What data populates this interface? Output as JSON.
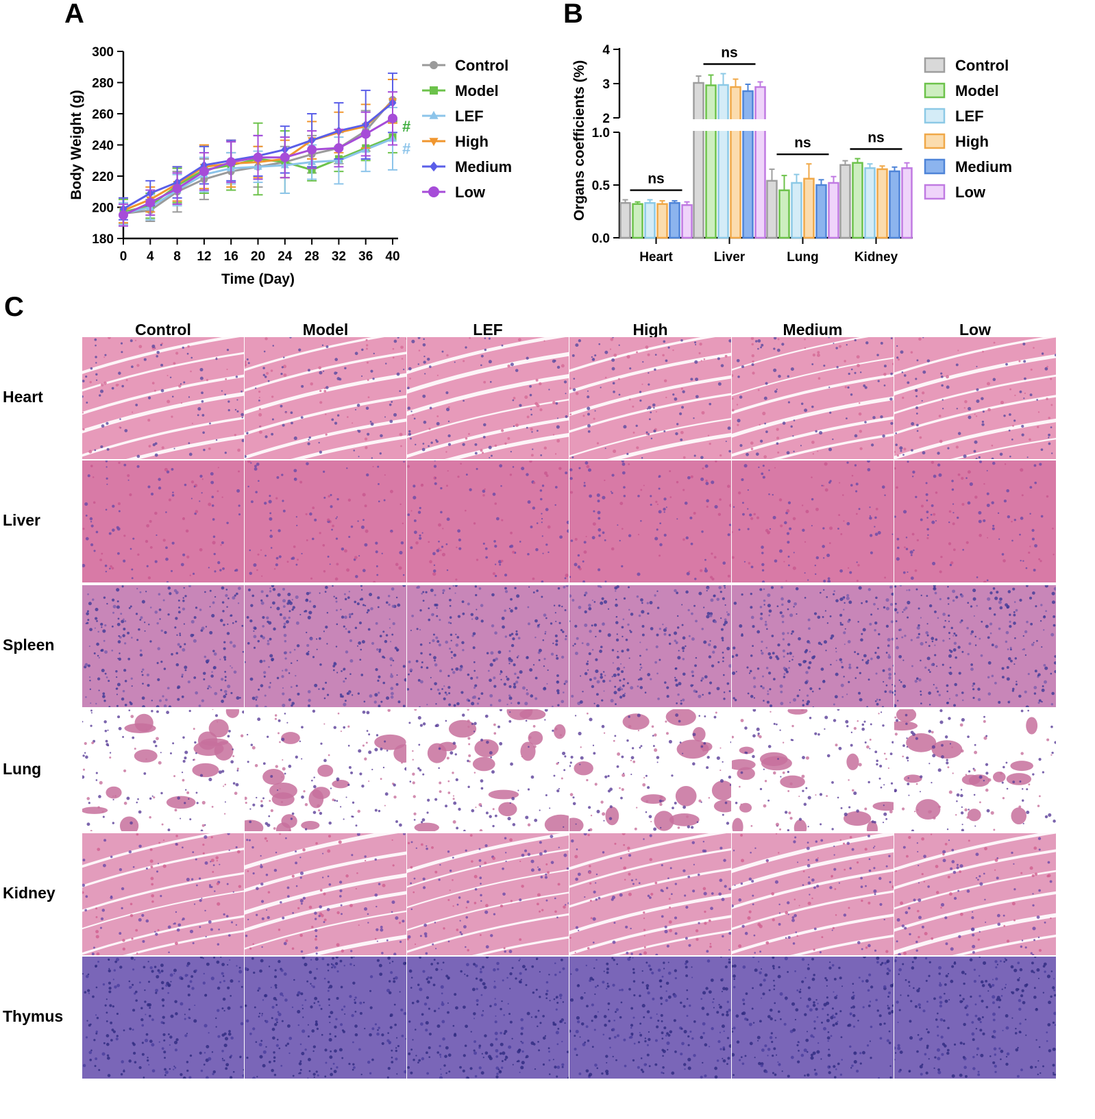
{
  "figure": {
    "panel_a_letter": "A",
    "panel_b_letter": "B",
    "panel_c_letter": "C"
  },
  "chart_data": [
    {
      "type": "line",
      "xlabel": "Time (Day)",
      "ylabel": "Body Weight (g)",
      "x": [
        0,
        4,
        8,
        12,
        16,
        20,
        24,
        28,
        32,
        36,
        40
      ],
      "xticks": [
        "0",
        "4",
        "8",
        "12",
        "16",
        "20",
        "24",
        "28",
        "32",
        "36",
        "40"
      ],
      "yticks": [
        "180",
        "200",
        "220",
        "240",
        "260",
        "280",
        "300"
      ],
      "xlim": [
        0,
        40
      ],
      "ylim": [
        180,
        300
      ],
      "grid": false,
      "legend_position": "right",
      "series": [
        {
          "name": "Control",
          "color": "#9a9a9a",
          "marker": "circle",
          "values": [
            196,
            198,
            210,
            218,
            223,
            226,
            229,
            234,
            238,
            249,
            269
          ],
          "errors": [
            6,
            7,
            13,
            13,
            12,
            13,
            10,
            12,
            10,
            13,
            13
          ]
        },
        {
          "name": "Model",
          "color": "#6cc24a",
          "marker": "square",
          "values": [
            197,
            201,
            214,
            224,
            227,
            231,
            229,
            224,
            231,
            238,
            245
          ],
          "errors": [
            8,
            8,
            11,
            15,
            16,
            23,
            20,
            7,
            8,
            8,
            10
          ]
        },
        {
          "name": "LEF",
          "color": "#8cc4ea",
          "marker": "triangle-up",
          "values": [
            196,
            200,
            211,
            221,
            225,
            226,
            227,
            229,
            230,
            237,
            244
          ],
          "errors": [
            7,
            8,
            10,
            11,
            10,
            10,
            18,
            11,
            15,
            14,
            20
          ]
        },
        {
          "name": "High",
          "color": "#f0962e",
          "marker": "triangle-down",
          "values": [
            198,
            205,
            215,
            226,
            228,
            229,
            231,
            243,
            248,
            252,
            268
          ],
          "errors": [
            8,
            8,
            11,
            14,
            15,
            10,
            12,
            12,
            13,
            14,
            14
          ]
        },
        {
          "name": "Medium",
          "color": "#5a5ee8",
          "marker": "diamond",
          "values": [
            199,
            209,
            216,
            227,
            230,
            233,
            237,
            243,
            249,
            253,
            267
          ],
          "errors": [
            7,
            8,
            10,
            12,
            13,
            13,
            15,
            17,
            18,
            22,
            19
          ]
        },
        {
          "name": "Low",
          "color": "#a64cd8",
          "marker": "circle",
          "values": [
            195,
            203,
            212,
            223,
            229,
            232,
            232,
            237,
            238,
            247,
            257
          ],
          "errors": [
            7,
            8,
            10,
            12,
            13,
            14,
            13,
            12,
            12,
            14,
            17
          ]
        }
      ],
      "annotations": [
        {
          "text": "#",
          "color": "#3fae3f",
          "series": "Model"
        },
        {
          "text": "#",
          "color": "#8cc4ea",
          "series": "LEF"
        }
      ]
    },
    {
      "type": "bar",
      "xlabel": "",
      "ylabel": "Organs coefficients (%)",
      "categories": [
        "Heart",
        "Liver",
        "Lung",
        "Kidney"
      ],
      "yticks_lower": [
        "0.0",
        "0.5",
        "1.0"
      ],
      "yticks_upper": [
        "2",
        "3",
        "4"
      ],
      "axis_break": [
        1.0,
        2.0
      ],
      "grid": false,
      "legend_position": "right",
      "series": [
        {
          "name": "Control",
          "color": "#9e9e9e",
          "fill": "#d9d9d9",
          "values": [
            0.33,
            3.02,
            0.54,
            0.69
          ],
          "errors": [
            0.03,
            0.2,
            0.11,
            0.04
          ]
        },
        {
          "name": "Model",
          "color": "#6cc24a",
          "fill": "#cdeec0",
          "values": [
            0.32,
            2.95,
            0.45,
            0.71
          ],
          "errors": [
            0.02,
            0.3,
            0.14,
            0.04
          ]
        },
        {
          "name": "LEF",
          "color": "#8cc9e6",
          "fill": "#d4ecf7",
          "values": [
            0.33,
            2.96,
            0.52,
            0.66
          ],
          "errors": [
            0.03,
            0.33,
            0.08,
            0.04
          ]
        },
        {
          "name": "High",
          "color": "#f0a848",
          "fill": "#fbdcae",
          "values": [
            0.32,
            2.9,
            0.56,
            0.65
          ],
          "errors": [
            0.03,
            0.23,
            0.14,
            0.03
          ]
        },
        {
          "name": "Medium",
          "color": "#4e84d8",
          "fill": "#8cb4ee",
          "values": [
            0.33,
            2.78,
            0.5,
            0.63
          ],
          "errors": [
            0.02,
            0.2,
            0.05,
            0.04
          ]
        },
        {
          "name": "Low",
          "color": "#c07ae2",
          "fill": "#efd4fa",
          "values": [
            0.31,
            2.9,
            0.52,
            0.66
          ],
          "errors": [
            0.03,
            0.15,
            0.06,
            0.05
          ]
        }
      ],
      "annotations": [
        "ns",
        "ns",
        "ns",
        "ns"
      ]
    }
  ],
  "histology": {
    "columns": [
      "Control",
      "Model",
      "LEF",
      "High",
      "Medium",
      "Low"
    ],
    "rows": [
      "Heart",
      "Liver",
      "Spleen",
      "Lung",
      "Kidney",
      "Thymus"
    ]
  }
}
